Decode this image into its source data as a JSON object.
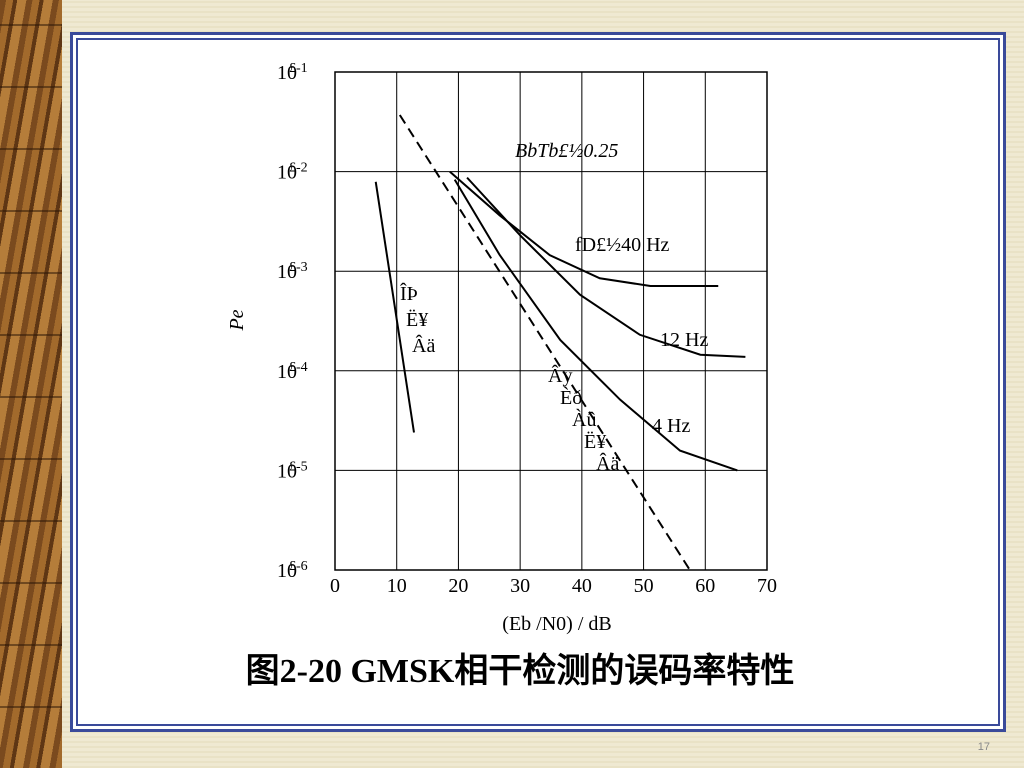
{
  "chart_data": {
    "type": "line",
    "y_scale": "log",
    "grid": true,
    "annotation": "BbTb£½0.25",
    "ylabel": "Pe",
    "xlabel": "(Eb /N0) / dB",
    "xlim": [
      0,
      70
    ],
    "xticks": [
      0,
      10,
      20,
      30,
      40,
      50,
      60,
      70
    ],
    "ylim": [
      1e-06,
      0.1
    ],
    "yticks": [
      {
        "value": 0.1,
        "label": "10£-1"
      },
      {
        "value": 0.01,
        "label": "10£-2"
      },
      {
        "value": 0.001,
        "label": "10£-3"
      },
      {
        "value": 0.0001,
        "label": "10£-4"
      },
      {
        "value": 1e-05,
        "label": "10£-5"
      },
      {
        "value": 1e-06,
        "label": "10£-6"
      }
    ],
    "series": [
      {
        "name": "ÎÞ Ë¥ Âä",
        "color": "#000000",
        "style": "solid",
        "x": [
          6.6,
          12.8
        ],
        "values": [
          0.0079,
          2.4e-05
        ]
      },
      {
        "name": "Ây Èð Àû Ë¥ Âä",
        "color": "#000000",
        "style": "dashed",
        "x": [
          10.5,
          57.5
        ],
        "values": [
          0.037,
          1e-06
        ]
      },
      {
        "name": "fD£½40 Hz",
        "color": "#000000",
        "style": "solid",
        "x": [
          18.6,
          26.7,
          34.8,
          42.9,
          51.1,
          62.1
        ],
        "values": [
          0.01,
          0.00363,
          0.00145,
          0.00085,
          0.00071,
          0.00071
        ]
      },
      {
        "name": "12 Hz",
        "color": "#000000",
        "style": "solid",
        "x": [
          21.4,
          30.0,
          39.7,
          49.4,
          59.2,
          66.5
        ],
        "values": [
          0.0087,
          0.00229,
          0.00058,
          0.00023,
          0.000145,
          0.000138
        ]
      },
      {
        "name": "4 Hz",
        "color": "#000000",
        "style": "solid",
        "x": [
          19.4,
          26.7,
          36.5,
          46.2,
          55.9,
          65.2
        ],
        "values": [
          0.0083,
          0.00145,
          0.000204,
          5.13e-05,
          1.58e-05,
          1e-05
        ]
      }
    ]
  },
  "caption": "图2-20 GMSK相干检测的误码率特性",
  "slide_number": "17"
}
